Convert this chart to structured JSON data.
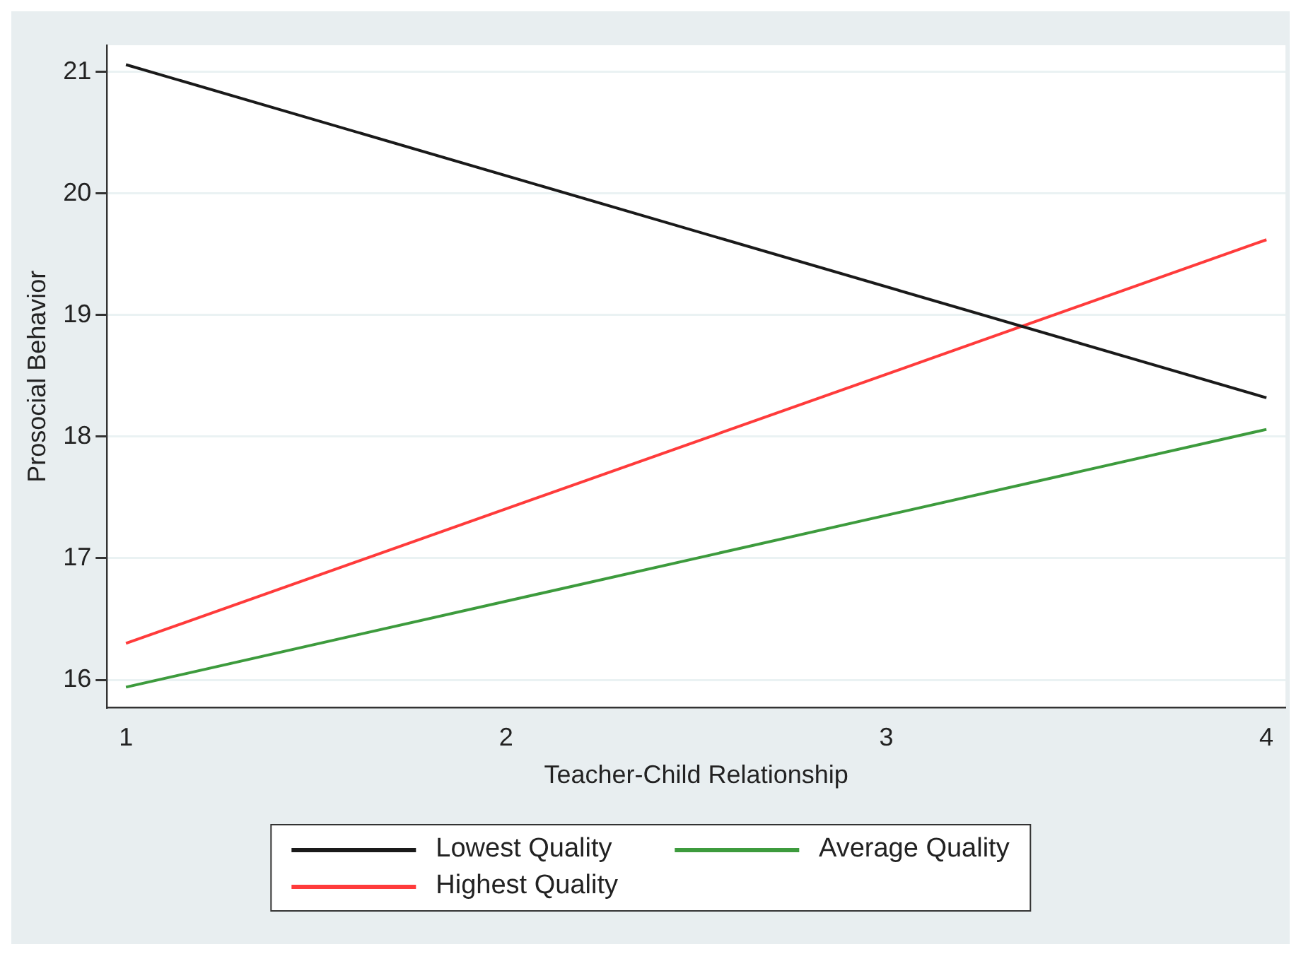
{
  "chart_data": {
    "type": "line",
    "xlabel": "Teacher-Child Relationship",
    "ylabel": "Prosocial Behavior",
    "x": [
      1,
      4
    ],
    "series": [
      {
        "name": "Lowest Quality",
        "color": "#1a1a1a",
        "values": [
          21.06,
          18.32
        ]
      },
      {
        "name": "Average Quality",
        "color": "#3d9b3d",
        "values": [
          15.94,
          18.06
        ]
      },
      {
        "name": "Highest Quality",
        "color": "#ff3b3b",
        "values": [
          16.3,
          19.62
        ]
      }
    ],
    "xlim": [
      0.95,
      4.05
    ],
    "xticks": [
      1,
      2,
      3,
      4
    ],
    "ylim": [
      15.77,
      21.22
    ],
    "yticks": [
      16,
      17,
      18,
      19,
      20,
      21
    ],
    "grid": "y",
    "legend": "bottom",
    "marker": "none",
    "line_style": "solid"
  }
}
